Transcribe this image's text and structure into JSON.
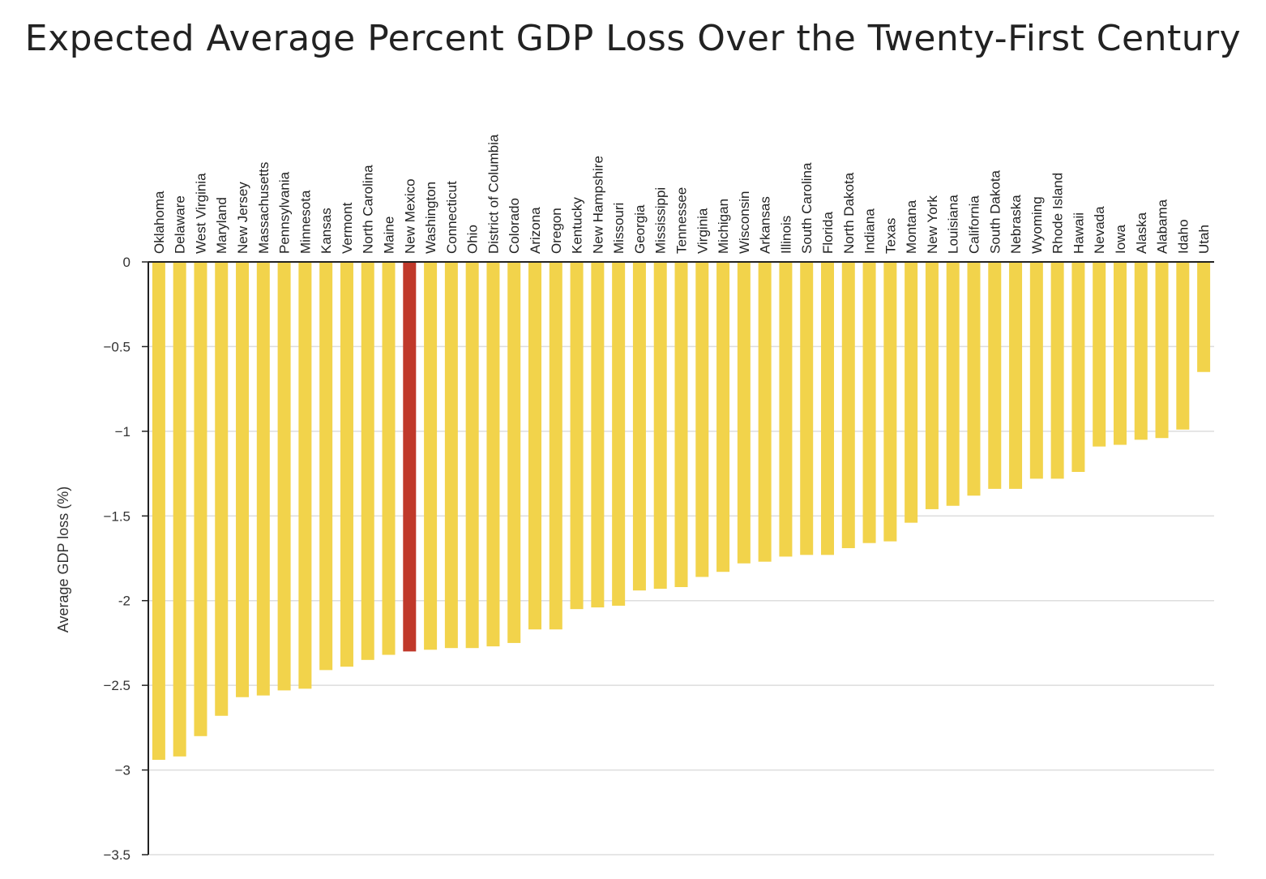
{
  "chart_data": {
    "type": "bar",
    "title": "Expected Average Percent GDP Loss Over the Twenty-First Century",
    "xlabel": "",
    "ylabel": "Average GDP loss (%)",
    "ylim": [
      -3.5,
      0
    ],
    "yticks": [
      0,
      -0.5,
      -1,
      -1.5,
      -2,
      -2.5,
      -3,
      -3.5
    ],
    "ytick_labels": [
      "0",
      "−0.5",
      "−1",
      "−1.5",
      "-2",
      "−2.5",
      "−3",
      "−3.5"
    ],
    "grid": true,
    "categories": [
      "Oklahoma",
      "Delaware",
      "West Virginia",
      "Maryland",
      "New Jersey",
      "Massachusetts",
      "Pennsylvania",
      "Minnesota",
      "Kansas",
      "Vermont",
      "North Carolina",
      "Maine",
      "New Mexico",
      "Washington",
      "Connecticut",
      "Ohio",
      "District of Columbia",
      "Colorado",
      "Arizona",
      "Oregon",
      "Kentucky",
      "New Hampshire",
      "Missouri",
      "Georgia",
      "Mississippi",
      "Tennessee",
      "Virginia",
      "Michigan",
      "Wisconsin",
      "Arkansas",
      "Illinois",
      "South Carolina",
      "Florida",
      "North Dakota",
      "Indiana",
      "Texas",
      "Montana",
      "New York",
      "Louisiana",
      "California",
      "South Dakota",
      "Nebraska",
      "Wyoming",
      "Rhode Island",
      "Hawaii",
      "Nevada",
      "Iowa",
      "Alaska",
      "Alabama",
      "Idaho",
      "Utah"
    ],
    "values": [
      -2.94,
      -2.92,
      -2.8,
      -2.68,
      -2.57,
      -2.56,
      -2.53,
      -2.52,
      -2.41,
      -2.39,
      -2.35,
      -2.32,
      -2.3,
      -2.29,
      -2.28,
      -2.28,
      -2.27,
      -2.25,
      -2.17,
      -2.17,
      -2.05,
      -2.04,
      -2.03,
      -1.94,
      -1.93,
      -1.92,
      -1.86,
      -1.83,
      -1.78,
      -1.77,
      -1.74,
      -1.73,
      -1.73,
      -1.69,
      -1.66,
      -1.65,
      -1.54,
      -1.46,
      -1.44,
      -1.38,
      -1.34,
      -1.34,
      -1.28,
      -1.28,
      -1.24,
      -1.09,
      -1.08,
      -1.05,
      -1.04,
      -0.99,
      -0.65
    ],
    "colors": {
      "default": "#F2D34B",
      "highlight": "#C0392B",
      "grid": "#DDDDDD",
      "axis": "#222222"
    },
    "highlight": "New Mexico"
  }
}
